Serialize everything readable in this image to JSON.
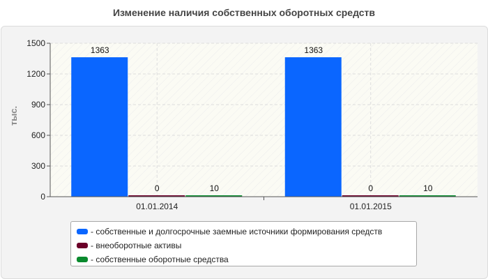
{
  "chart_data": {
    "type": "bar",
    "title": "Изменение наличия собственных оборотных средств",
    "ylabel": "тыс.",
    "xlabel": "",
    "categories": [
      "01.01.2014",
      "01.01.2015"
    ],
    "ylim": [
      0,
      1500
    ],
    "yticks": [
      0,
      300,
      600,
      900,
      1200,
      1500
    ],
    "grid": true,
    "legend_position": "bottom",
    "series": [
      {
        "name": "- собственные и долгосрочные заемные источники формирования средств",
        "values": [
          1363,
          1363
        ],
        "color": "#0a66ff"
      },
      {
        "name": "- внеоборотные активы",
        "values": [
          0,
          0
        ],
        "color": "#6b0029"
      },
      {
        "name": "- собственные оборотные средства",
        "values": [
          10,
          10
        ],
        "color": "#0a8a2e"
      }
    ]
  }
}
